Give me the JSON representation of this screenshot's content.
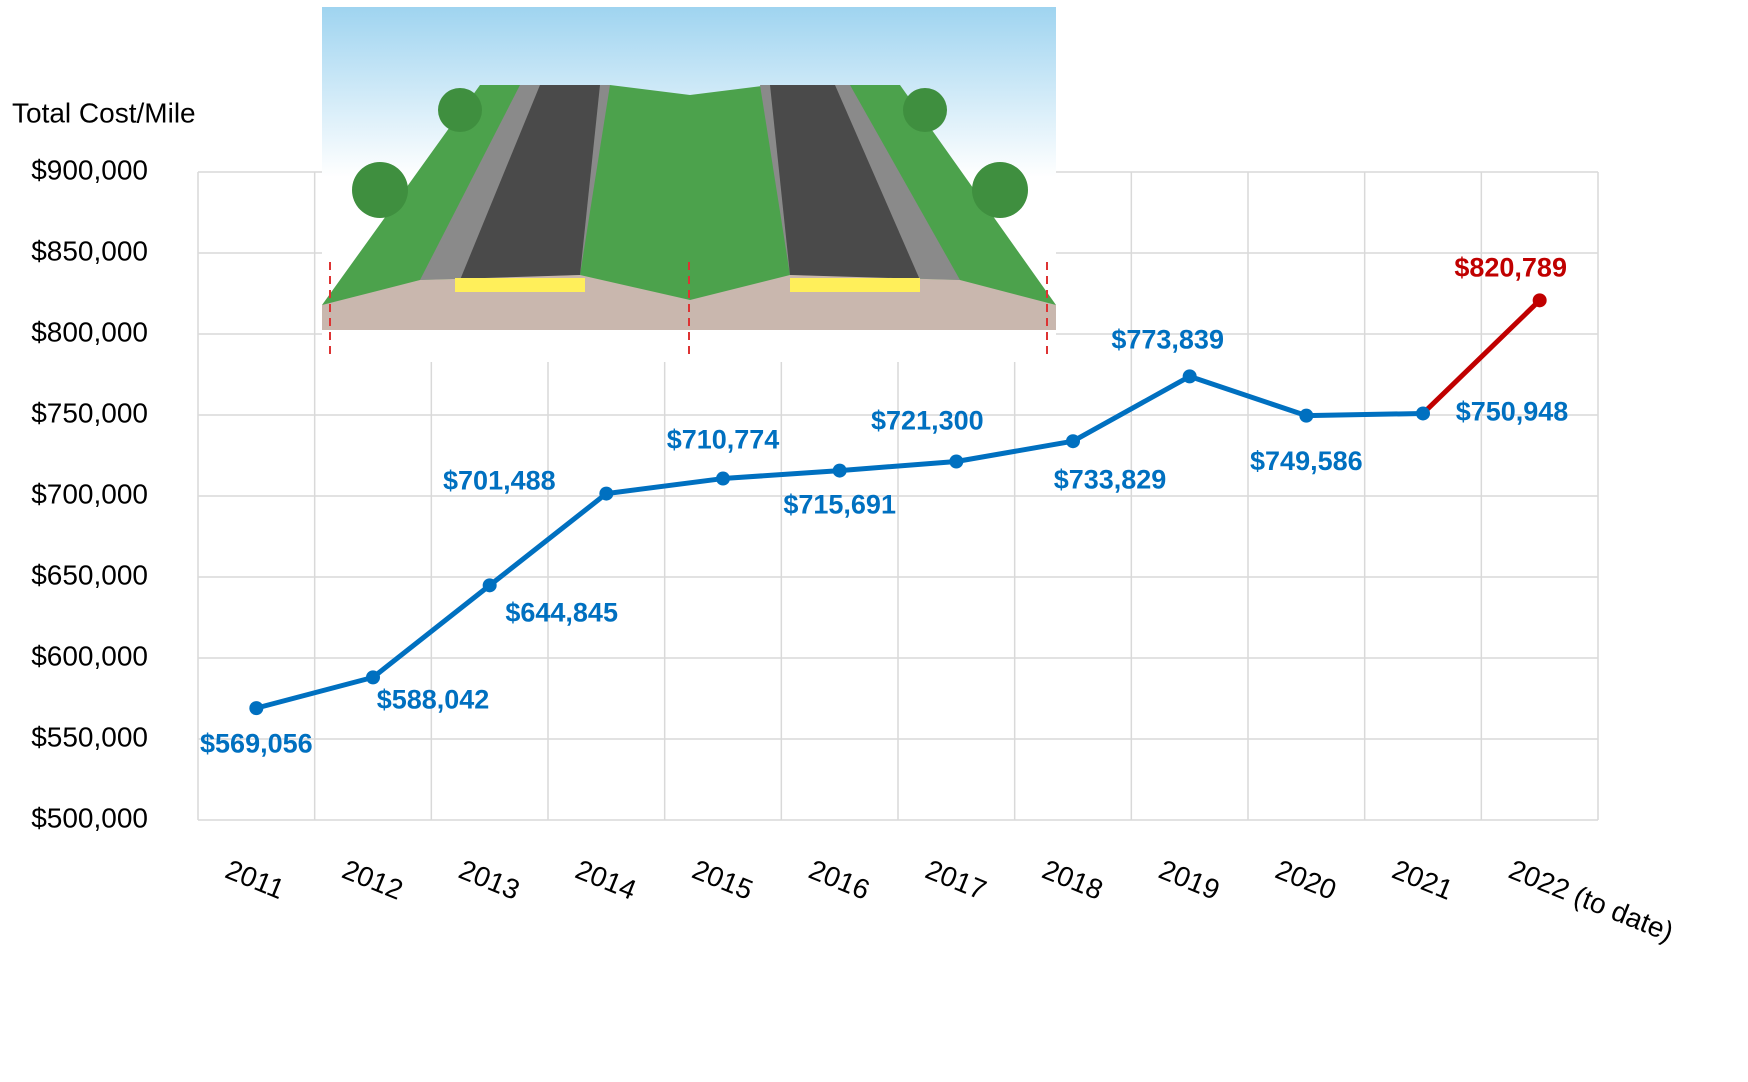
{
  "chart_data": {
    "type": "line",
    "y_axis_label": "Total Cost/Mile",
    "categories": [
      "2011",
      "2012",
      "2013",
      "2014",
      "2015",
      "2016",
      "2017",
      "2018",
      "2019",
      "2020",
      "2021",
      "2022 (to date)"
    ],
    "series": [
      {
        "color": "#0070c0",
        "last_segment_color": "#c00000",
        "values": [
          569056,
          588042,
          644845,
          701488,
          710774,
          715691,
          721300,
          733829,
          773839,
          749586,
          750948,
          820789
        ],
        "value_labels": [
          "$569,056",
          "$588,042",
          "$644,845",
          "$701,488",
          "$710,774",
          "$715,691",
          "$721,300",
          "$733,829",
          "$773,839",
          "$749,586",
          "$750,948",
          "$820,789"
        ]
      }
    ],
    "ylim": [
      500000,
      900000
    ],
    "yticks": [
      {
        "value": 500000,
        "label": "$500,000"
      },
      {
        "value": 550000,
        "label": "$550,000"
      },
      {
        "value": 600000,
        "label": "$600,000"
      },
      {
        "value": 650000,
        "label": "$650,000"
      },
      {
        "value": 700000,
        "label": "$700,000"
      },
      {
        "value": 750000,
        "label": "$750,000"
      },
      {
        "value": 800000,
        "label": "$800,000"
      },
      {
        "value": 850000,
        "label": "$850,000"
      },
      {
        "value": 900000,
        "label": "$900,000"
      }
    ],
    "grid": true
  }
}
